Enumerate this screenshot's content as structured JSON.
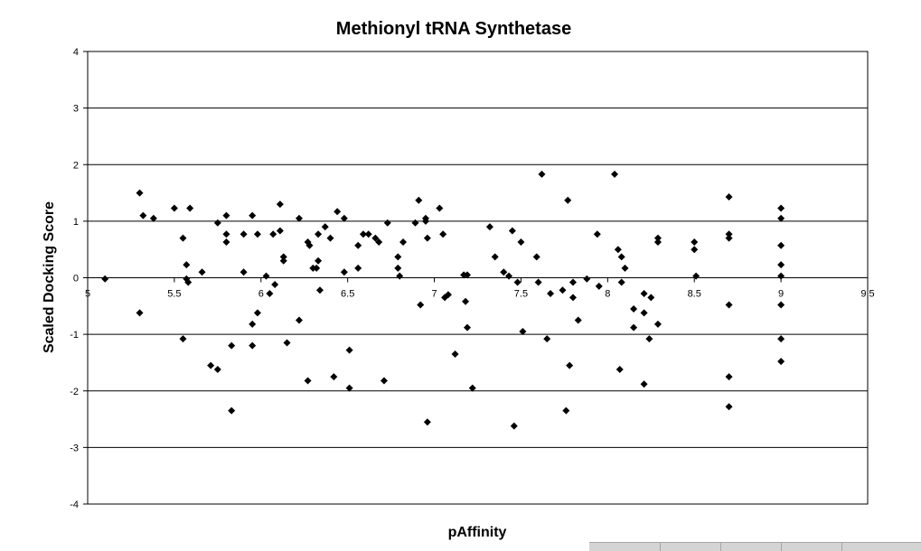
{
  "chart_data": {
    "type": "scatter",
    "title": "Methionyl tRNA Synthetase",
    "xlabel": "pAffinity",
    "ylabel": "Scaled Docking Score",
    "xlim": [
      5,
      9.5
    ],
    "ylim": [
      -4,
      4
    ],
    "x_ticks": [
      "5",
      "5.5",
      "6",
      "6.5",
      "7",
      "7.5",
      "8",
      "8.5",
      "9",
      "9.5"
    ],
    "y_ticks": [
      "4",
      "3",
      "2",
      "1",
      "0",
      "-1",
      "-2",
      "-3",
      "-4"
    ],
    "y_gridlines": true,
    "marker": "diamond",
    "marker_color": "#000000",
    "points": [
      [
        5.1,
        -0.02
      ],
      [
        5.3,
        1.5
      ],
      [
        5.3,
        -0.62
      ],
      [
        5.32,
        1.1
      ],
      [
        5.38,
        1.05
      ],
      [
        5.5,
        1.23
      ],
      [
        5.55,
        0.7
      ],
      [
        5.55,
        -1.08
      ],
      [
        5.57,
        0.23
      ],
      [
        5.57,
        -0.02
      ],
      [
        5.58,
        -0.08
      ],
      [
        5.59,
        1.23
      ],
      [
        5.66,
        0.1
      ],
      [
        5.71,
        -1.55
      ],
      [
        5.75,
        0.97
      ],
      [
        5.75,
        -1.62
      ],
      [
        5.8,
        1.1
      ],
      [
        5.8,
        0.77
      ],
      [
        5.8,
        0.63
      ],
      [
        5.83,
        -1.2
      ],
      [
        5.83,
        -2.35
      ],
      [
        5.9,
        0.77
      ],
      [
        5.9,
        0.1
      ],
      [
        5.95,
        1.1
      ],
      [
        5.95,
        -0.82
      ],
      [
        5.95,
        -1.2
      ],
      [
        5.98,
        0.77
      ],
      [
        5.98,
        -0.62
      ],
      [
        6.03,
        0.03
      ],
      [
        6.05,
        -0.28
      ],
      [
        6.07,
        0.77
      ],
      [
        6.08,
        -0.12
      ],
      [
        6.11,
        1.3
      ],
      [
        6.11,
        0.83
      ],
      [
        6.13,
        0.37
      ],
      [
        6.13,
        0.3
      ],
      [
        6.15,
        -1.15
      ],
      [
        6.22,
        1.05
      ],
      [
        6.22,
        -0.75
      ],
      [
        6.27,
        0.63
      ],
      [
        6.27,
        -1.82
      ],
      [
        6.28,
        0.57
      ],
      [
        6.3,
        0.17
      ],
      [
        6.32,
        0.17
      ],
      [
        6.33,
        0.77
      ],
      [
        6.33,
        0.3
      ],
      [
        6.34,
        -0.22
      ],
      [
        6.37,
        0.9
      ],
      [
        6.4,
        0.7
      ],
      [
        6.42,
        -1.75
      ],
      [
        6.44,
        1.17
      ],
      [
        6.48,
        1.05
      ],
      [
        6.48,
        0.1
      ],
      [
        6.51,
        -1.28
      ],
      [
        6.51,
        -1.95
      ],
      [
        6.56,
        0.57
      ],
      [
        6.56,
        0.17
      ],
      [
        6.59,
        0.77
      ],
      [
        6.62,
        0.77
      ],
      [
        6.66,
        0.7
      ],
      [
        6.68,
        0.63
      ],
      [
        6.71,
        -1.82
      ],
      [
        6.73,
        0.97
      ],
      [
        6.79,
        0.37
      ],
      [
        6.79,
        0.17
      ],
      [
        6.8,
        0.03
      ],
      [
        6.82,
        0.63
      ],
      [
        6.89,
        0.97
      ],
      [
        6.91,
        1.37
      ],
      [
        6.92,
        -0.48
      ],
      [
        6.95,
        1.05
      ],
      [
        6.95,
        1.0
      ],
      [
        6.96,
        0.7
      ],
      [
        6.96,
        -2.55
      ],
      [
        7.03,
        1.23
      ],
      [
        7.05,
        0.77
      ],
      [
        7.06,
        -0.35
      ],
      [
        7.08,
        -0.3
      ],
      [
        7.12,
        -1.35
      ],
      [
        7.17,
        0.05
      ],
      [
        7.18,
        -0.42
      ],
      [
        7.19,
        0.05
      ],
      [
        7.19,
        -0.88
      ],
      [
        7.22,
        -1.95
      ],
      [
        7.32,
        0.9
      ],
      [
        7.35,
        0.37
      ],
      [
        7.4,
        0.1
      ],
      [
        7.43,
        0.03
      ],
      [
        7.45,
        0.83
      ],
      [
        7.46,
        -2.62
      ],
      [
        7.48,
        -0.08
      ],
      [
        7.5,
        0.63
      ],
      [
        7.51,
        -0.95
      ],
      [
        7.59,
        0.37
      ],
      [
        7.6,
        -0.08
      ],
      [
        7.62,
        1.83
      ],
      [
        7.65,
        -1.08
      ],
      [
        7.67,
        -0.28
      ],
      [
        7.74,
        -0.22
      ],
      [
        7.76,
        -2.35
      ],
      [
        7.77,
        1.37
      ],
      [
        7.78,
        -1.55
      ],
      [
        7.8,
        -0.08
      ],
      [
        7.8,
        -0.35
      ],
      [
        7.83,
        -0.75
      ],
      [
        7.88,
        -0.02
      ],
      [
        7.94,
        0.77
      ],
      [
        7.95,
        -0.15
      ],
      [
        8.04,
        1.83
      ],
      [
        8.06,
        0.5
      ],
      [
        8.07,
        -1.62
      ],
      [
        8.08,
        0.37
      ],
      [
        8.08,
        -0.08
      ],
      [
        8.1,
        0.17
      ],
      [
        8.15,
        -0.55
      ],
      [
        8.15,
        -0.88
      ],
      [
        8.21,
        -0.28
      ],
      [
        8.21,
        -0.62
      ],
      [
        8.21,
        -1.88
      ],
      [
        8.24,
        -1.08
      ],
      [
        8.25,
        -0.35
      ],
      [
        8.29,
        0.7
      ],
      [
        8.29,
        0.63
      ],
      [
        8.29,
        -0.82
      ],
      [
        8.5,
        0.63
      ],
      [
        8.5,
        0.5
      ],
      [
        8.51,
        0.03
      ],
      [
        8.7,
        1.43
      ],
      [
        8.7,
        0.77
      ],
      [
        8.7,
        0.7
      ],
      [
        8.7,
        -0.48
      ],
      [
        8.7,
        -1.75
      ],
      [
        8.7,
        -2.28
      ],
      [
        9.0,
        1.23
      ],
      [
        9.0,
        1.05
      ],
      [
        9.0,
        0.57
      ],
      [
        9.0,
        0.23
      ],
      [
        9.0,
        0.03
      ],
      [
        9.0,
        -0.48
      ],
      [
        9.0,
        -1.08
      ],
      [
        9.0,
        -1.48
      ]
    ]
  }
}
